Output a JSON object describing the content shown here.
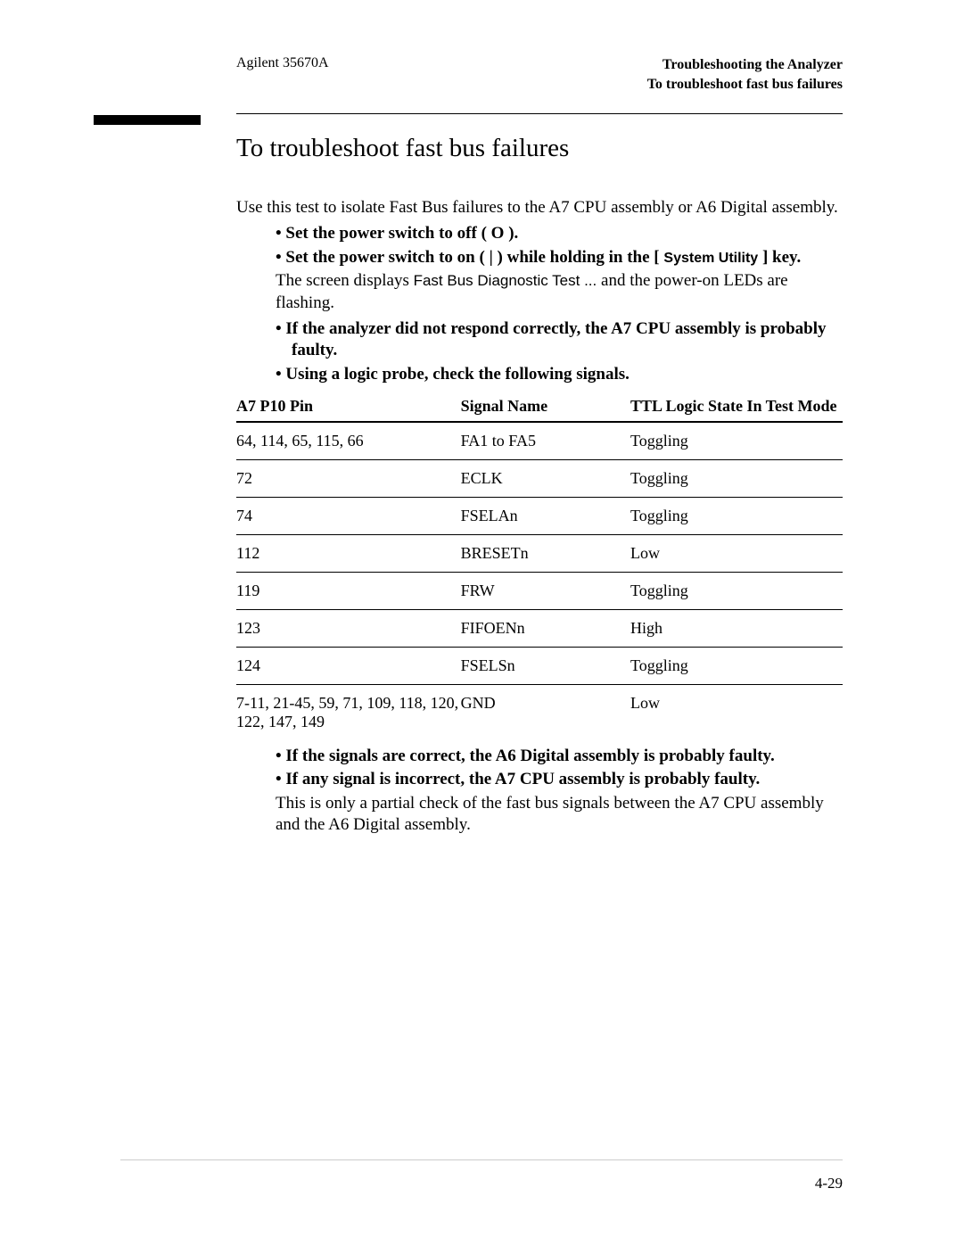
{
  "header": {
    "left": "Agilent 35670A",
    "right_line1": "Troubleshooting the Analyzer",
    "right_line2": "To troubleshoot fast bus failures"
  },
  "title": "To troubleshoot fast bus failures",
  "intro": "Use this test to isolate Fast Bus failures to the A7 CPU assembly or A6 Digital assembly.",
  "step1_a": "Set the power switch to off ( ",
  "step1_b": " ).",
  "off_symbol": "O",
  "step2_a": "Set the power switch to on ( ",
  "step2_b": " ) while holding in the [ ",
  "step2_c": " ] key.",
  "on_symbol": "|",
  "system_utility": "System Utility",
  "screen_line_a": "The screen displays ",
  "screen_line_b": "Fast Bus Diagnostic Test ...",
  "screen_line_c": " and the power-on LEDs are flashing.",
  "step3": "If the analyzer did not respond correctly, the A7 CPU assembly is probably faulty.",
  "step4": "Using a logic probe, check the following signals.",
  "table": {
    "headers": [
      "A7 P10 Pin",
      "Signal Name",
      "TTL Logic State In Test Mode"
    ],
    "rows": [
      [
        "64, 114, 65, 115, 66",
        "FA1 to FA5",
        "Toggling"
      ],
      [
        "72",
        "ECLK",
        "Toggling"
      ],
      [
        "74",
        "FSELAn",
        "Toggling"
      ],
      [
        "112",
        "BRESETn",
        "Low"
      ],
      [
        "119",
        "FRW",
        "Toggling"
      ],
      [
        "123",
        "FIFOENn",
        "High"
      ],
      [
        "124",
        "FSELSn",
        "Toggling"
      ],
      [
        "7-11, 21-45, 59, 71, 109, 118, 120, 122, 147, 149",
        "GND",
        "Low"
      ]
    ]
  },
  "step5": "If the signals are correct, the A6 Digital assembly is probably faulty.",
  "step6": "If any signal is incorrect, the A7 CPU assembly is probably faulty.",
  "closing": "This is only a partial check of the fast bus signals between the A7 CPU assembly and the A6 Digital assembly.",
  "page_number": "4-29"
}
